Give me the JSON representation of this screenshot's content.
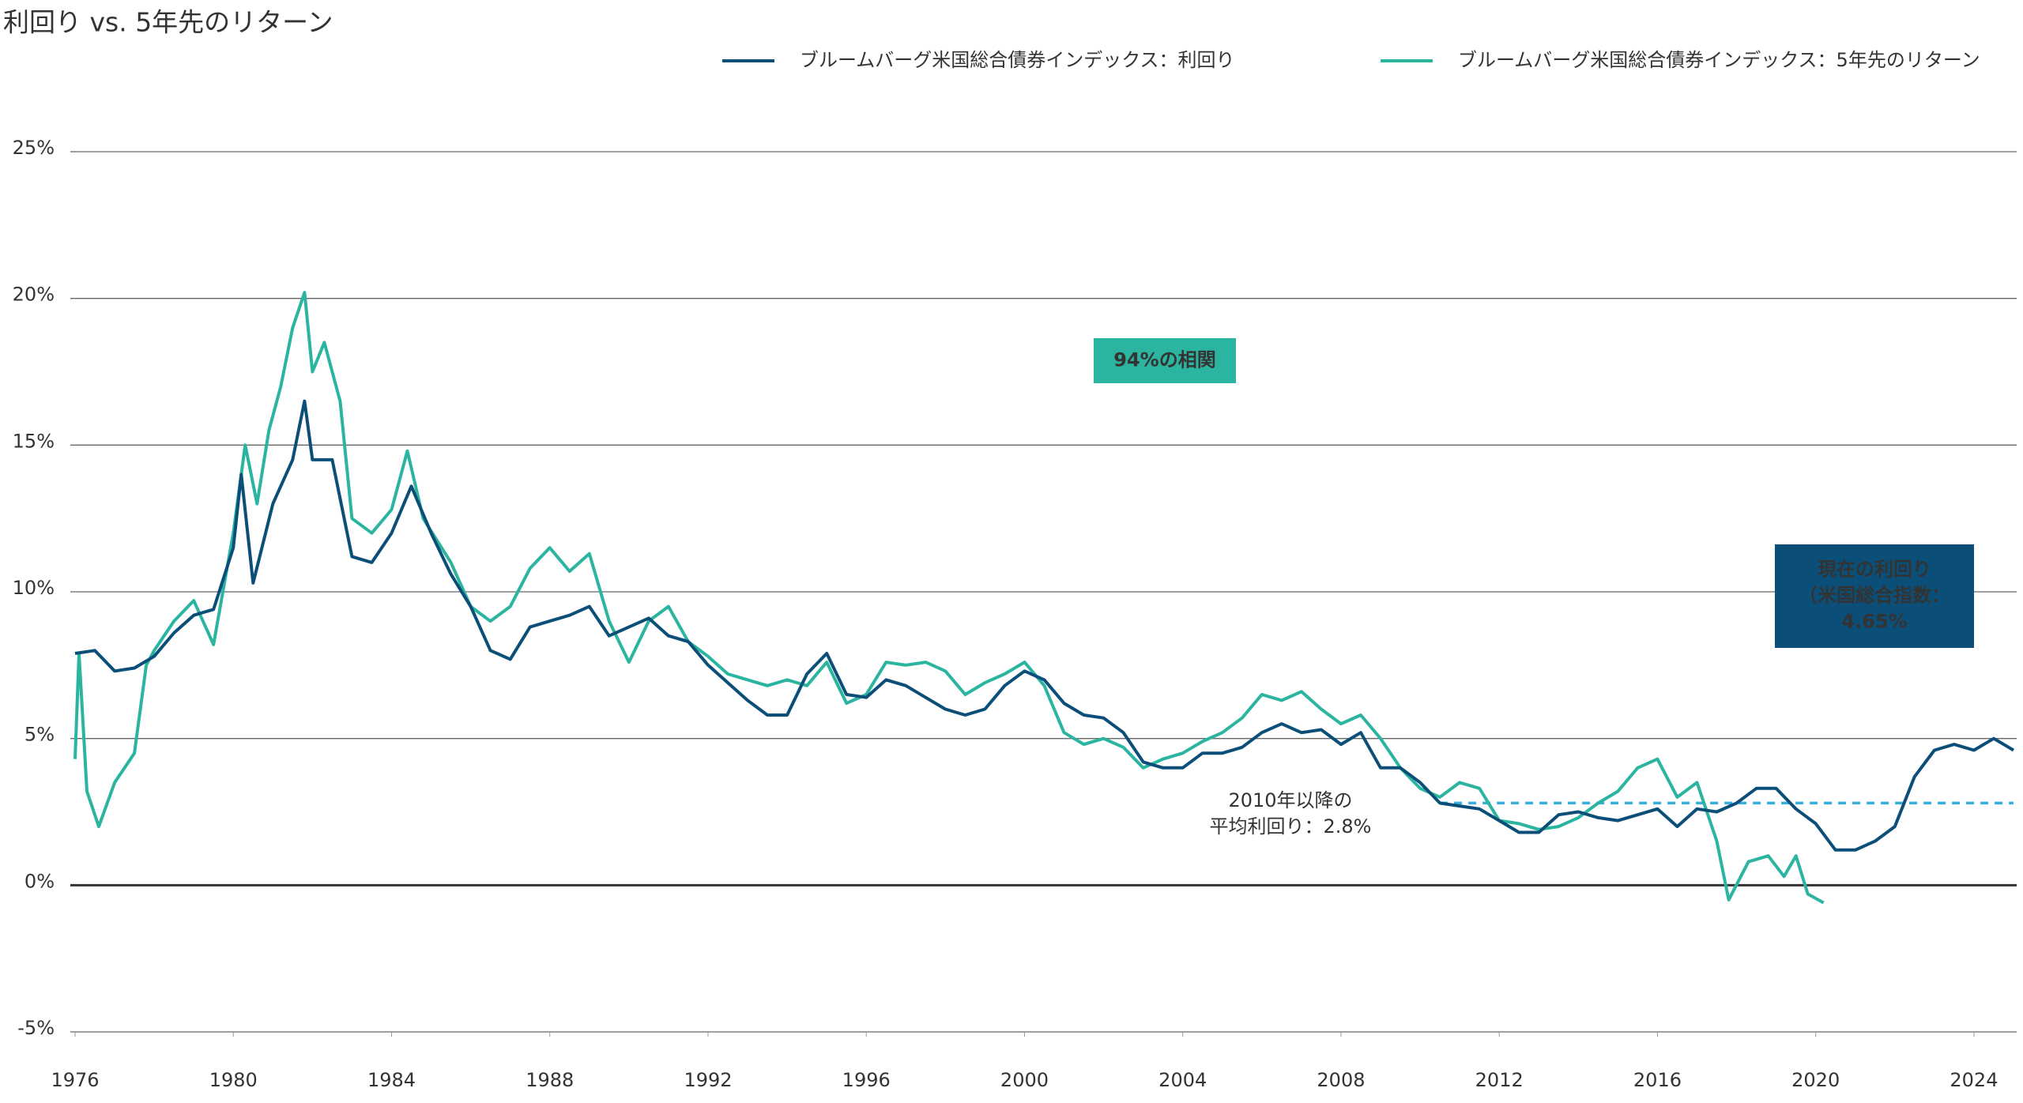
{
  "chart_data": {
    "type": "line",
    "title": "利回り vs. 5年先のリターン",
    "xlim": [
      1976,
      2025
    ],
    "ylim": [
      -5,
      25
    ],
    "xticks": [
      1976,
      1980,
      1984,
      1988,
      1992,
      1996,
      2000,
      2004,
      2008,
      2012,
      2016,
      2020,
      2024
    ],
    "yticks": [
      {
        "value": -5,
        "label": "-5%"
      },
      {
        "value": 0,
        "label": "0%"
      },
      {
        "value": 5,
        "label": "5%"
      },
      {
        "value": 10,
        "label": "10%"
      },
      {
        "value": 15,
        "label": "15%"
      },
      {
        "value": 20,
        "label": "20%"
      },
      {
        "value": 25,
        "label": "25%"
      }
    ],
    "grid": true,
    "legend": "top-right",
    "series": [
      {
        "name": "ブルームバーグ米国総合債券インデックス：利回り",
        "color": "#0b4f79",
        "x": [
          1976.0,
          1976.5,
          1977.0,
          1977.5,
          1978.0,
          1978.5,
          1979.0,
          1979.5,
          1980.0,
          1980.2,
          1980.5,
          1981.0,
          1981.5,
          1981.8,
          1982.0,
          1982.5,
          1983.0,
          1983.5,
          1984.0,
          1984.5,
          1985.0,
          1985.5,
          1986.0,
          1986.5,
          1987.0,
          1987.5,
          1988.0,
          1988.5,
          1989.0,
          1989.5,
          1990.0,
          1990.5,
          1991.0,
          1991.5,
          1992.0,
          1992.5,
          1993.0,
          1993.5,
          1994.0,
          1994.5,
          1995.0,
          1995.5,
          1996.0,
          1996.5,
          1997.0,
          1997.5,
          1998.0,
          1998.5,
          1999.0,
          1999.5,
          2000.0,
          2000.5,
          2001.0,
          2001.5,
          2002.0,
          2002.5,
          2003.0,
          2003.5,
          2004.0,
          2004.5,
          2005.0,
          2005.5,
          2006.0,
          2006.5,
          2007.0,
          2007.5,
          2008.0,
          2008.5,
          2009.0,
          2009.5,
          2010.0,
          2010.5,
          2011.0,
          2011.5,
          2012.0,
          2012.5,
          2013.0,
          2013.5,
          2014.0,
          2014.5,
          2015.0,
          2015.5,
          2016.0,
          2016.5,
          2017.0,
          2017.5,
          2018.0,
          2018.5,
          2019.0,
          2019.5,
          2020.0,
          2020.5,
          2021.0,
          2021.5,
          2022.0,
          2022.5,
          2023.0,
          2023.5,
          2024.0,
          2024.5,
          2025.0
        ],
        "values": [
          7.9,
          8.0,
          7.3,
          7.4,
          7.8,
          8.6,
          9.2,
          9.4,
          11.5,
          14.0,
          10.3,
          13.0,
          14.5,
          16.5,
          14.5,
          14.5,
          11.2,
          11.0,
          12.0,
          13.6,
          12.0,
          10.6,
          9.5,
          8.0,
          7.7,
          8.8,
          9.0,
          9.2,
          9.5,
          8.5,
          8.8,
          9.1,
          8.5,
          8.3,
          7.5,
          6.9,
          6.3,
          5.8,
          5.8,
          7.2,
          7.9,
          6.5,
          6.4,
          7.0,
          6.8,
          6.4,
          6.0,
          5.8,
          6.0,
          6.8,
          7.3,
          7.0,
          6.2,
          5.8,
          5.7,
          5.2,
          4.2,
          4.0,
          4.0,
          4.5,
          4.5,
          4.7,
          5.2,
          5.5,
          5.2,
          5.3,
          4.8,
          5.2,
          4.0,
          4.0,
          3.5,
          2.8,
          2.7,
          2.6,
          2.2,
          1.8,
          1.8,
          2.4,
          2.5,
          2.3,
          2.2,
          2.4,
          2.6,
          2.0,
          2.6,
          2.5,
          2.8,
          3.3,
          3.3,
          2.6,
          2.1,
          1.2,
          1.2,
          1.5,
          2.0,
          3.7,
          4.6,
          4.8,
          4.6,
          5.0,
          4.6
        ]
      },
      {
        "name": "ブルームバーグ米国総合債券インデックス：5年先のリターン",
        "color": "#2bb5a0",
        "x": [
          1976.0,
          1976.1,
          1976.3,
          1976.6,
          1977.0,
          1977.5,
          1977.8,
          1978.0,
          1978.5,
          1979.0,
          1979.5,
          1980.0,
          1980.3,
          1980.6,
          1980.9,
          1981.2,
          1981.5,
          1981.8,
          1982.0,
          1982.3,
          1982.7,
          1983.0,
          1983.5,
          1984.0,
          1984.4,
          1984.8,
          1985.5,
          1986.0,
          1986.5,
          1987.0,
          1987.5,
          1988.0,
          1988.5,
          1989.0,
          1989.5,
          1990.0,
          1990.5,
          1991.0,
          1991.5,
          1992.0,
          1992.5,
          1993.0,
          1993.5,
          1994.0,
          1994.5,
          1995.0,
          1995.5,
          1996.0,
          1996.5,
          1997.0,
          1997.5,
          1998.0,
          1998.5,
          1999.0,
          1999.5,
          2000.0,
          2000.5,
          2001.0,
          2001.5,
          2002.0,
          2002.5,
          2003.0,
          2003.5,
          2004.0,
          2004.5,
          2005.0,
          2005.5,
          2006.0,
          2006.5,
          2007.0,
          2007.5,
          2008.0,
          2008.5,
          2009.0,
          2009.5,
          2010.0,
          2010.5,
          2011.0,
          2011.5,
          2012.0,
          2012.5,
          2013.0,
          2013.5,
          2014.0,
          2014.5,
          2015.0,
          2015.5,
          2016.0,
          2016.5,
          2017.0,
          2017.5,
          2017.8,
          2018.3,
          2018.8,
          2019.2,
          2019.5,
          2019.8,
          2020.2
        ],
        "values": [
          4.3,
          7.9,
          3.2,
          2.0,
          3.5,
          4.5,
          7.5,
          8.0,
          9.0,
          9.7,
          8.2,
          12.0,
          15.0,
          13.0,
          15.5,
          17.0,
          19.0,
          20.2,
          17.5,
          18.5,
          16.5,
          12.5,
          12.0,
          12.8,
          14.8,
          12.5,
          11.0,
          9.5,
          9.0,
          9.5,
          10.8,
          11.5,
          10.7,
          11.3,
          9.0,
          7.6,
          9.0,
          9.5,
          8.3,
          7.8,
          7.2,
          7.0,
          6.8,
          7.0,
          6.8,
          7.6,
          6.2,
          6.5,
          7.6,
          7.5,
          7.6,
          7.3,
          6.5,
          6.9,
          7.2,
          7.6,
          6.8,
          5.2,
          4.8,
          5.0,
          4.7,
          4.0,
          4.3,
          4.5,
          4.9,
          5.2,
          5.7,
          6.5,
          6.3,
          6.6,
          6.0,
          5.5,
          5.8,
          5.0,
          4.0,
          3.3,
          3.0,
          3.5,
          3.3,
          2.2,
          2.1,
          1.9,
          2.0,
          2.3,
          2.8,
          3.2,
          4.0,
          4.3,
          3.0,
          3.5,
          1.5,
          -0.5,
          0.8,
          1.0,
          0.3,
          1.0,
          -0.3,
          -0.6
        ]
      }
    ],
    "average_line": {
      "value": 2.8,
      "start": 2010.5,
      "color": "#3aaedb",
      "label": [
        "2010年以降の",
        "平均利回り：2.8%"
      ]
    },
    "annotations": [
      {
        "text": [
          "94%の相関"
        ],
        "color": "#2bb5a0"
      },
      {
        "text": [
          "現在の利回り",
          "（米国総合指数：",
          "4.65%"
        ],
        "color": "#0b4f79"
      }
    ]
  }
}
